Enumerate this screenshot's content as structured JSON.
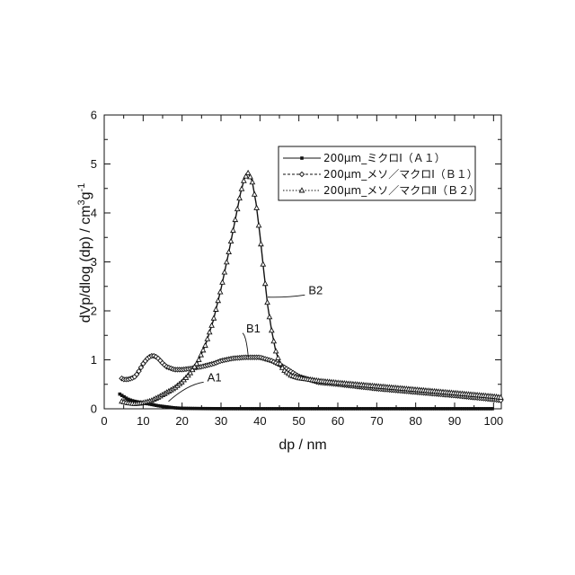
{
  "chart_data": {
    "type": "line",
    "xlabel": "dp / nm",
    "ylabel_main": "dVp/dlog (dp)  / cm",
    "ylabel_sup1": "3",
    "ylabel_mid": "g",
    "ylabel_sup2": "-1",
    "xlim": [
      0,
      102
    ],
    "ylim": [
      0,
      6
    ],
    "xticks": [
      "0",
      "10",
      "20",
      "30",
      "40",
      "50",
      "60",
      "70",
      "80",
      "90",
      "100"
    ],
    "xtick_values": [
      0,
      10,
      20,
      30,
      40,
      50,
      60,
      70,
      80,
      90,
      100
    ],
    "yticks": [
      "0",
      "1",
      "2",
      "3",
      "4",
      "5",
      "6"
    ],
    "ytick_values": [
      0,
      1,
      2,
      3,
      4,
      5,
      6
    ],
    "grid": false,
    "legend_position": "top-right",
    "series": [
      {
        "name": "200μm_ミクロⅠ（Ａ１）",
        "marker": "square",
        "x": [
          4,
          5,
          6,
          7,
          8,
          10,
          12,
          14,
          16,
          18,
          20,
          25,
          30,
          40,
          50,
          60,
          80,
          100
        ],
        "y": [
          0.3,
          0.25,
          0.2,
          0.17,
          0.15,
          0.12,
          0.09,
          0.06,
          0.04,
          0.02,
          0.01,
          0.005,
          0.003,
          0.002,
          0.002,
          0.002,
          0.002,
          0.002
        ]
      },
      {
        "name": "200μm_メソ／マクロⅠ（Ｂ１）",
        "marker": "diamond",
        "x": [
          4.5,
          5,
          6,
          7,
          8,
          9,
          10,
          11,
          12,
          13,
          14,
          15,
          16,
          18,
          20,
          22,
          25,
          28,
          30,
          33,
          36,
          40,
          43,
          46,
          50,
          55,
          60,
          70,
          80,
          90,
          100,
          102
        ],
        "y": [
          0.62,
          0.6,
          0.6,
          0.62,
          0.66,
          0.78,
          0.92,
          1.02,
          1.08,
          1.08,
          1.02,
          0.93,
          0.86,
          0.8,
          0.8,
          0.82,
          0.86,
          0.92,
          0.98,
          1.03,
          1.05,
          1.05,
          0.98,
          0.86,
          0.66,
          0.54,
          0.5,
          0.41,
          0.34,
          0.27,
          0.19,
          0.17
        ]
      },
      {
        "name": "200μm_メソ／マクロⅡ（Ｂ２）",
        "marker": "triangle",
        "x": [
          4.5,
          6,
          8,
          10,
          12,
          14,
          16,
          18,
          20,
          22,
          24,
          26,
          28,
          30,
          32,
          33,
          34,
          35,
          36,
          37,
          38,
          39,
          40,
          41,
          42,
          43,
          44,
          45,
          46,
          48,
          50,
          55,
          60,
          70,
          80,
          90,
          100,
          102
        ],
        "y": [
          0.15,
          0.12,
          0.1,
          0.12,
          0.16,
          0.24,
          0.33,
          0.42,
          0.55,
          0.72,
          0.95,
          1.3,
          1.8,
          2.45,
          3.2,
          3.6,
          4.0,
          4.4,
          4.7,
          4.82,
          4.65,
          4.2,
          3.55,
          2.8,
          2.1,
          1.6,
          1.2,
          0.95,
          0.8,
          0.68,
          0.63,
          0.57,
          0.53,
          0.46,
          0.39,
          0.32,
          0.25,
          0.23
        ]
      }
    ],
    "annotations": [
      {
        "text": "A1",
        "x": 16.5,
        "y": 0.15,
        "label_x": 26,
        "label_y": 0.6
      },
      {
        "text": "B1",
        "x": 37,
        "y": 1.06,
        "label_x": 36,
        "label_y": 1.6
      },
      {
        "text": "B2",
        "x": 42,
        "y": 2.28,
        "label_x": 52,
        "label_y": 2.38
      }
    ]
  }
}
